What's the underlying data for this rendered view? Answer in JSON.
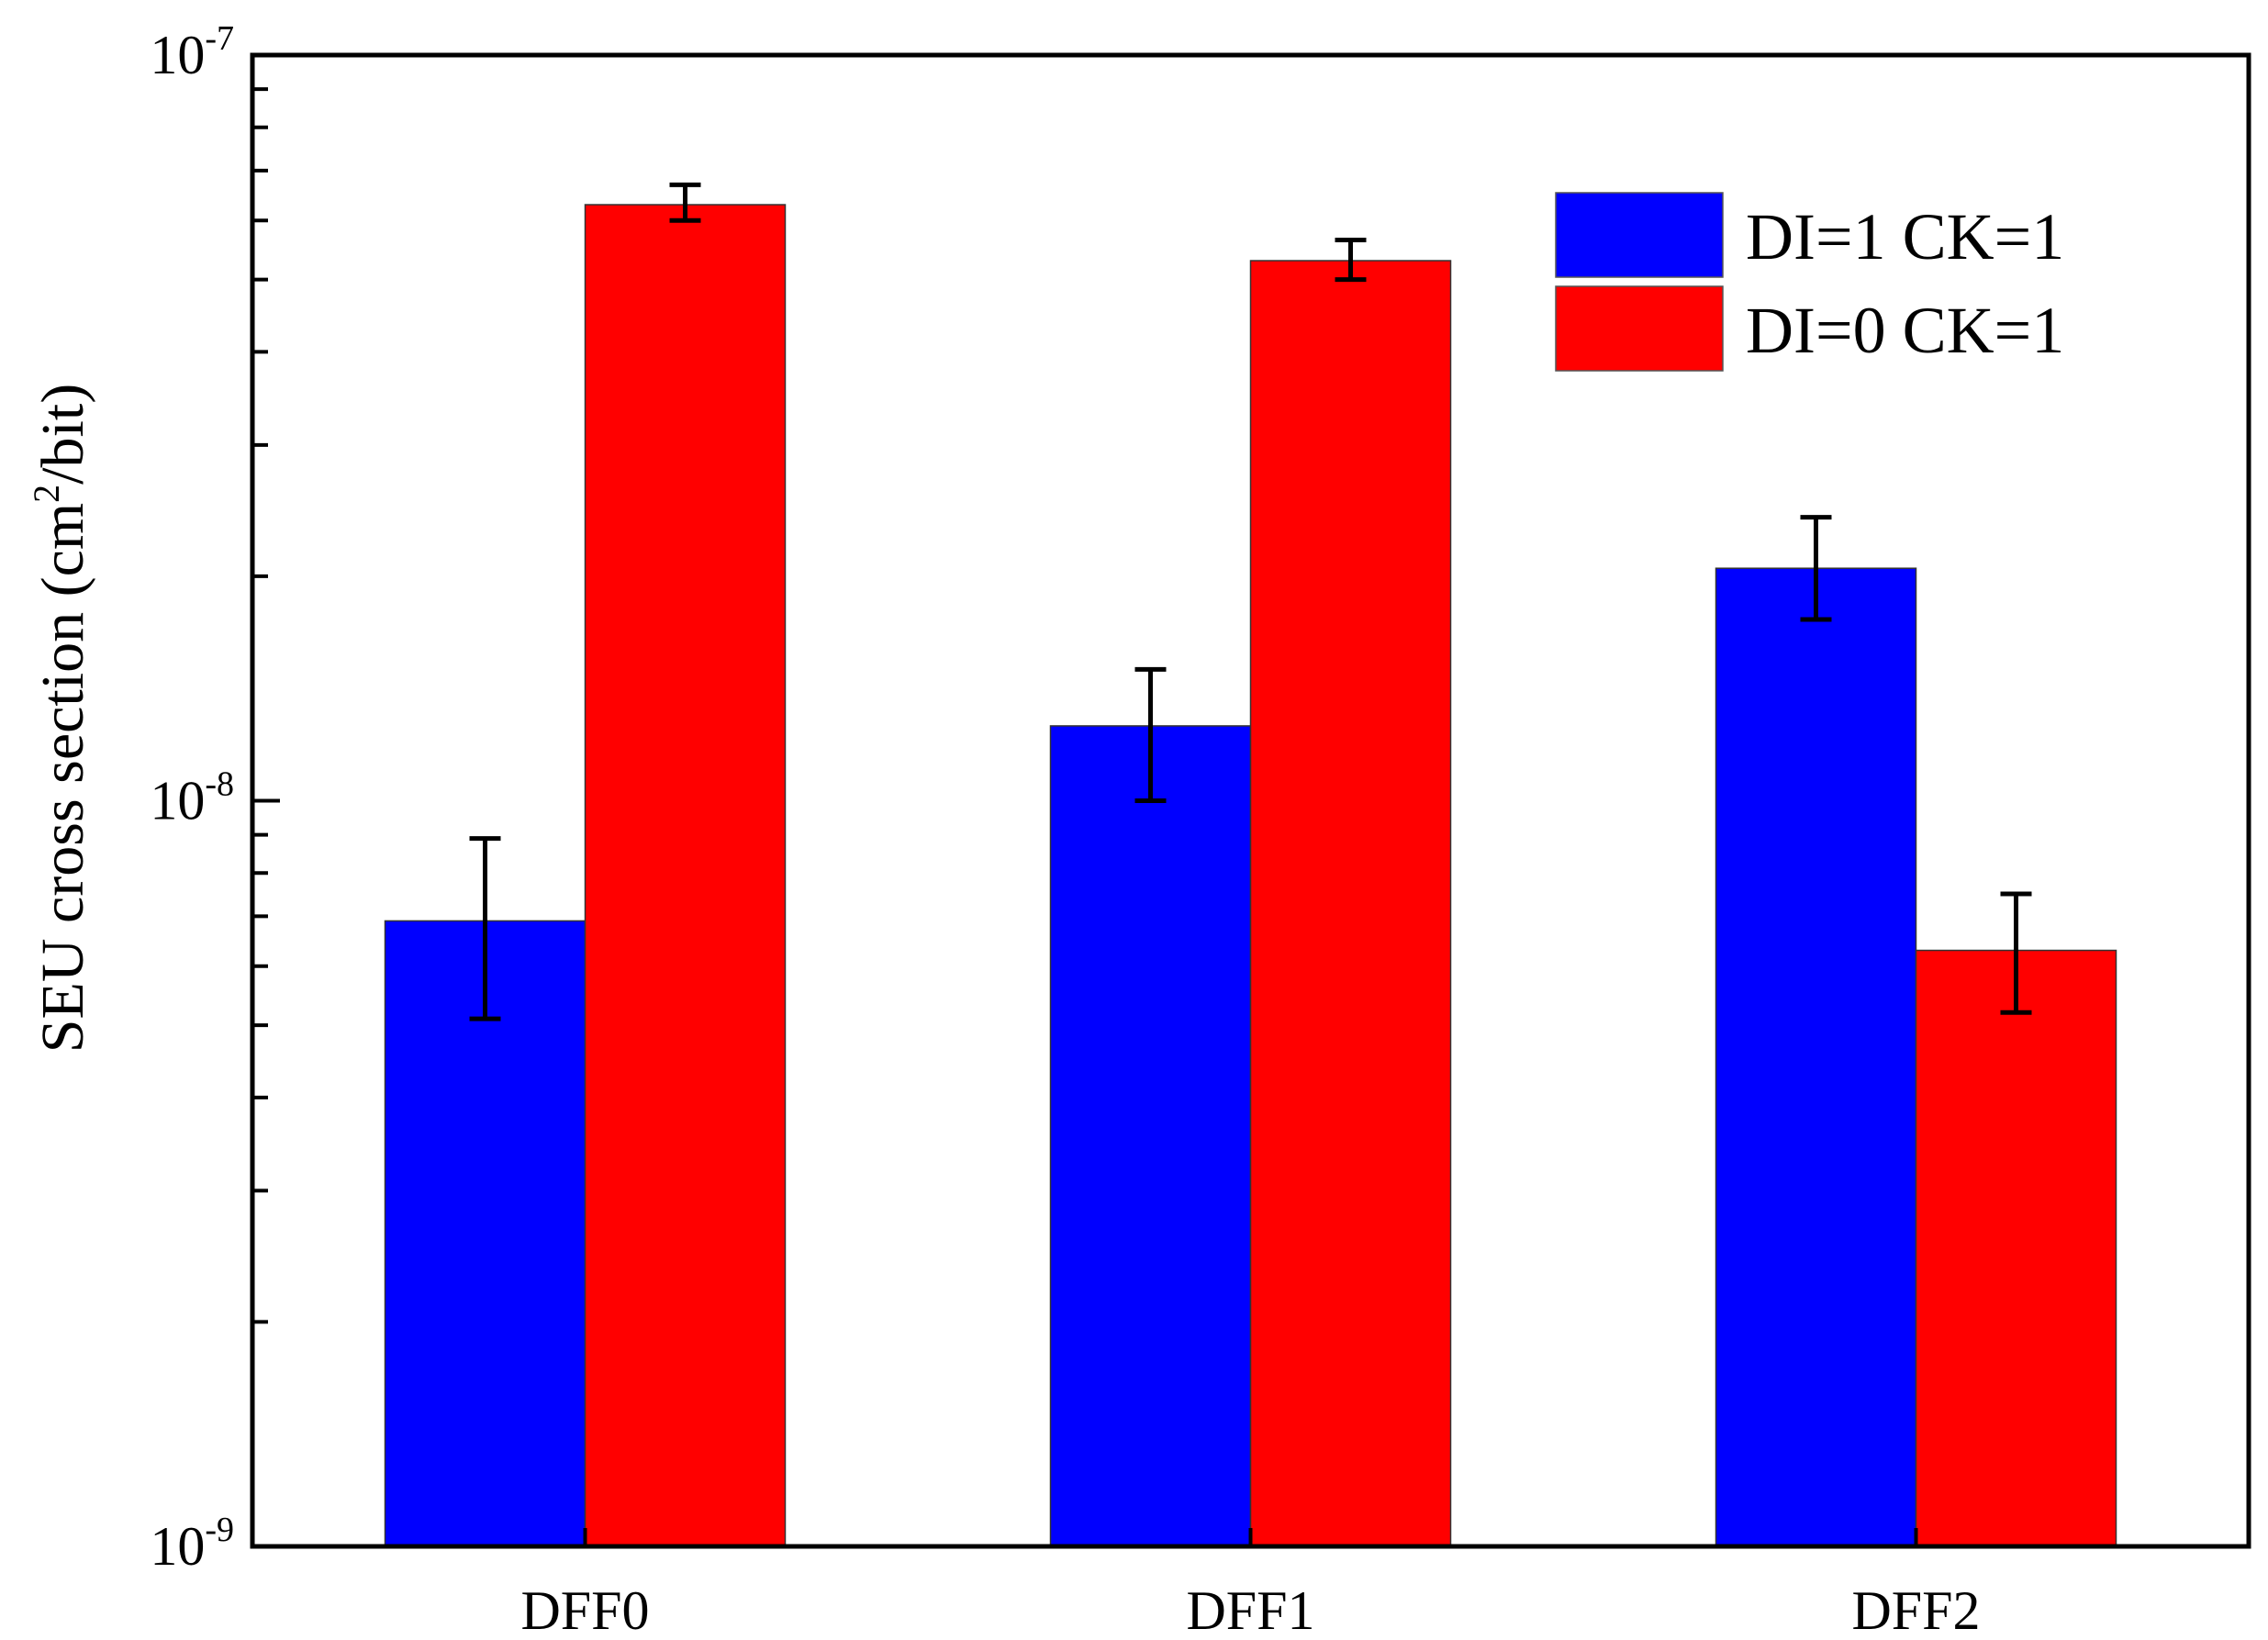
{
  "chart_data": {
    "type": "bar",
    "title": "",
    "xlabel": "",
    "ylabel": {
      "text_before": "SEU cross section (cm",
      "superscript": "2",
      "text_after": "/bit)"
    },
    "yscale": "log",
    "ylim": [
      1e-09,
      1e-07
    ],
    "y_ticks": [
      {
        "value": 1e-09,
        "base": "10",
        "exponent": "-9"
      },
      {
        "value": 1e-08,
        "base": "10",
        "exponent": "-8"
      },
      {
        "value": 1e-07,
        "base": "10",
        "exponent": "-7"
      }
    ],
    "categories": [
      "DFF0",
      "DFF1",
      "DFF2"
    ],
    "series": [
      {
        "name": "DI=1 CK=1",
        "color": "#0000ff",
        "values": [
          6.9e-09,
          1.26e-08,
          2.05e-08
        ],
        "error_low": [
          5.1e-09,
          1e-08,
          1.75e-08
        ],
        "error_high": [
          8.9e-09,
          1.5e-08,
          2.4e-08
        ]
      },
      {
        "name": "DI=0 CK=1",
        "color": "#ff0000",
        "values": [
          6.3e-08,
          5.3e-08,
          6.3e-09
        ],
        "error_low": [
          6e-08,
          5e-08,
          5.2e-09
        ],
        "error_high": [
          6.7e-08,
          5.65e-08,
          7.5e-09
        ]
      }
    ],
    "legend_position": "top-right",
    "grid": false
  }
}
